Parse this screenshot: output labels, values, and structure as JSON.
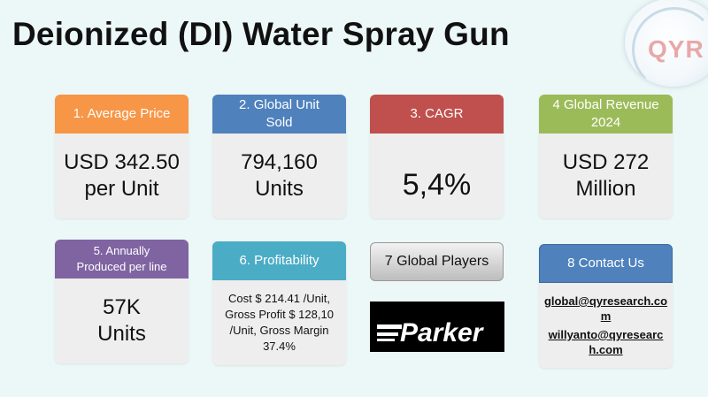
{
  "title": "Deionized (DI) Water Spray Gun",
  "logo": {
    "text": "QYR"
  },
  "cards": [
    {
      "header": "1. Average Price",
      "body_lines": [
        "USD 342.50",
        "per Unit"
      ],
      "color": "#f79646"
    },
    {
      "header": "2. Global Unit Sold",
      "body_lines": [
        "794,160",
        "Units"
      ],
      "color": "#4f81bd"
    },
    {
      "header": "3. CAGR",
      "body_lines": [
        "5,4%"
      ],
      "color": "#c0504d"
    },
    {
      "header": "4 Global Revenue 2024",
      "body_lines": [
        "USD 272",
        "Million"
      ],
      "color": "#9bbb59"
    },
    {
      "header": "5. Annually Produced per line",
      "body_lines": [
        "57K",
        "Units"
      ],
      "color": "#8064a2"
    },
    {
      "header": "6. Profitability",
      "body": "Cost $ 214.41 /Unit, Gross Profit $ 128,10 /Unit, Gross Margin 37.4%",
      "color": "#4bacc6"
    },
    {
      "header": "8 Contact Us",
      "emails": [
        "global@qyresearch.com",
        "willyanto@qyresearch.com"
      ],
      "color": "#4f81bd"
    }
  ],
  "players": {
    "header": "7 Global Players",
    "brand": "Parker"
  }
}
